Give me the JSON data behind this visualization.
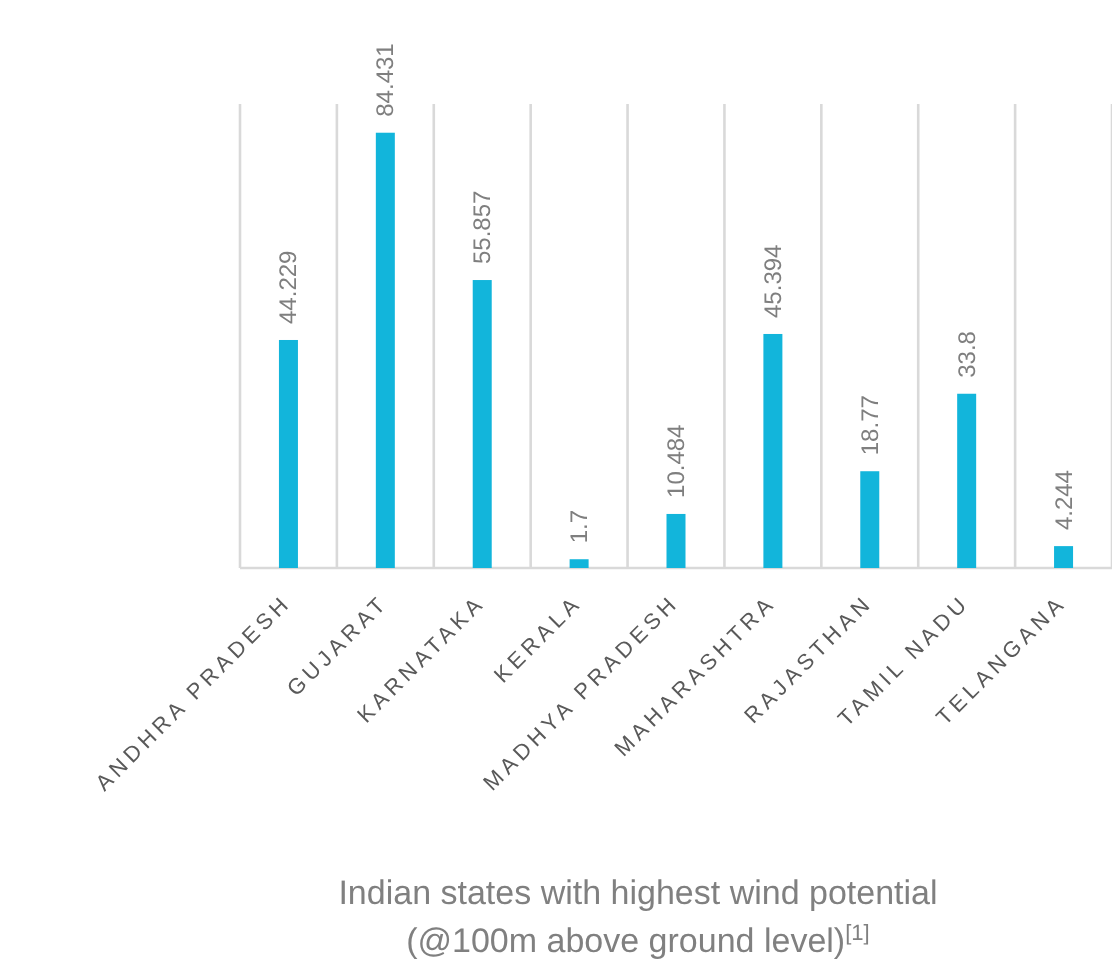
{
  "chart_data": {
    "type": "bar",
    "title": "Indian states with highest wind potential\n(@100m above ground level)$^{[1]}$",
    "categories": [
      "ANDHRA PRADESH",
      "GUJARAT",
      "KARNATAKA",
      "KERALA",
      "MADHYA PRADESH",
      "MAHARASHTRA",
      "RAJASTHAN",
      "TAMIL NADU",
      "TELANGANA"
    ],
    "values": [
      44.229,
      84.431,
      55.857,
      1.7,
      10.484,
      45.394,
      18.77,
      33.8,
      4.244
    ],
    "color": "#12b5db",
    "data_labels": true,
    "grid": "x"
  }
}
